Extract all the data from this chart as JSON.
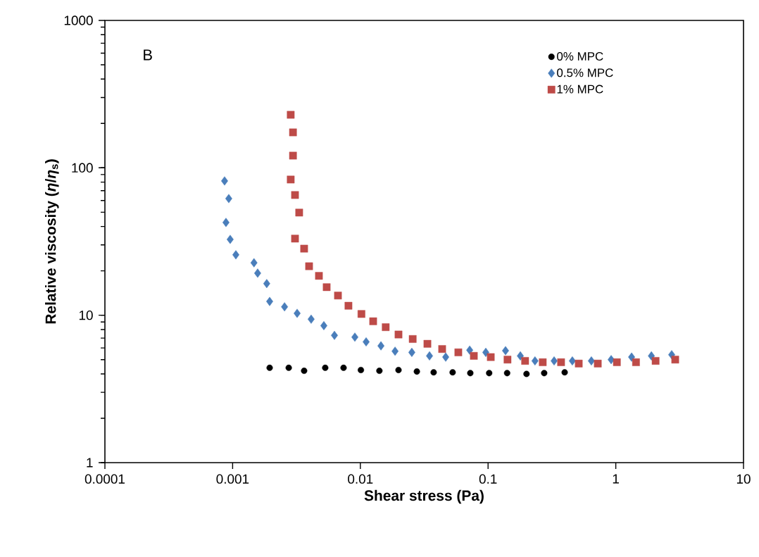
{
  "chart_data": {
    "type": "scatter",
    "xlabel": "Shear stress (Pa)",
    "ylabel": "Relative viscosity (*η*/*η*$_{s}$)",
    "annotations": [
      "B"
    ],
    "log": "xy",
    "xlim": [
      0.0001,
      10
    ],
    "ylim": [
      1,
      1000
    ],
    "xticks": [
      0.0001,
      0.001,
      0.01,
      0.1,
      1,
      10
    ],
    "yticks": [
      1,
      10,
      100,
      1000
    ],
    "legend": "top right",
    "series": [
      {
        "name": "0% MPC",
        "color": "#000000",
        "marker": "circle",
        "x": [
          0.00195,
          0.00275,
          0.00363,
          0.00531,
          0.00739,
          0.0101,
          0.0141,
          0.0199,
          0.0277,
          0.0375,
          0.0528,
          0.0726,
          0.102,
          0.141,
          0.2,
          0.275,
          0.398
        ],
        "values": [
          4.4,
          4.4,
          4.2,
          4.4,
          4.4,
          4.25,
          4.2,
          4.25,
          4.15,
          4.1,
          4.1,
          4.05,
          4.05,
          4.05,
          4.0,
          4.05,
          4.1
        ]
      },
      {
        "name": "0.5% MPC",
        "color": "#4a7ebb",
        "marker": "diamond",
        "x": [
          0.000865,
          0.000933,
          0.000887,
          0.000957,
          0.00106,
          0.00147,
          0.00157,
          0.00185,
          0.00195,
          0.00255,
          0.0032,
          0.00412,
          0.00518,
          0.00627,
          0.00906,
          0.0111,
          0.0145,
          0.0187,
          0.0253,
          0.0348,
          0.0466,
          0.0718,
          0.096,
          0.137,
          0.179,
          0.233,
          0.329,
          0.457,
          0.644,
          0.92,
          1.33,
          1.9,
          2.74
        ],
        "values": [
          81.5,
          61.9,
          42.6,
          32.7,
          25.7,
          22.7,
          19.3,
          16.4,
          12.4,
          11.4,
          10.3,
          9.4,
          8.5,
          7.3,
          7.1,
          6.6,
          6.2,
          5.7,
          5.6,
          5.3,
          5.2,
          5.8,
          5.6,
          5.75,
          5.3,
          4.9,
          4.9,
          4.9,
          4.9,
          5.0,
          5.2,
          5.3,
          5.4
        ]
      },
      {
        "name": "1% MPC",
        "color": "#be4b48",
        "marker": "square",
        "x": [
          0.00285,
          0.00297,
          0.00297,
          0.00285,
          0.00308,
          0.00332,
          0.00308,
          0.00363,
          0.00397,
          0.00474,
          0.00545,
          0.00668,
          0.00807,
          0.0102,
          0.0126,
          0.0158,
          0.0199,
          0.0257,
          0.0335,
          0.0437,
          0.0585,
          0.0774,
          0.105,
          0.142,
          0.195,
          0.268,
          0.373,
          0.513,
          0.723,
          1.02,
          1.44,
          2.05,
          2.92
        ],
        "values": [
          229,
          174,
          121,
          83.3,
          65.4,
          49.7,
          33.1,
          28.3,
          21.5,
          18.5,
          15.5,
          13.6,
          11.6,
          10.2,
          9.1,
          8.3,
          7.4,
          6.9,
          6.4,
          5.9,
          5.6,
          5.3,
          5.2,
          5.0,
          4.9,
          4.8,
          4.8,
          4.7,
          4.7,
          4.8,
          4.8,
          4.9,
          5.0
        ]
      }
    ]
  }
}
